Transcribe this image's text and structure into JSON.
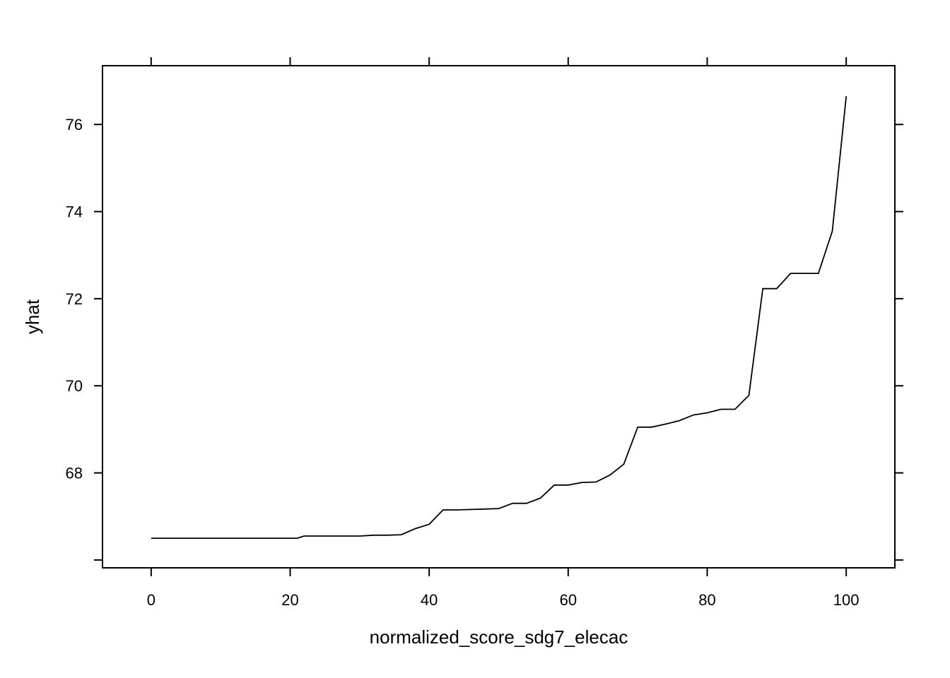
{
  "chart_data": {
    "type": "line",
    "title": "",
    "xlabel": "normalized_score_sdg7_elecac",
    "ylabel": "yhat",
    "xlim": [
      -7,
      107
    ],
    "ylim": [
      65.82,
      77.35
    ],
    "grid": false,
    "x_ticks": [
      0,
      20,
      40,
      60,
      80,
      100
    ],
    "x_tick_labels": [
      "0",
      "20",
      "40",
      "60",
      "80",
      "100"
    ],
    "y_ticks": [
      66,
      68,
      70,
      72,
      74,
      76
    ],
    "y_tick_labels": [
      "",
      "68",
      "70",
      "72",
      "74",
      "76"
    ],
    "series": [
      {
        "x": [
          0,
          2,
          4,
          6,
          8,
          10,
          12,
          14,
          16,
          18,
          20,
          21,
          22,
          24,
          26,
          28,
          30,
          32,
          34,
          36,
          38,
          40,
          42,
          44,
          46,
          48,
          50,
          52,
          54,
          56,
          58,
          60,
          62,
          64,
          66,
          68,
          70,
          72,
          74,
          76,
          78,
          80,
          82,
          84,
          86,
          88,
          90,
          92,
          94,
          96,
          98,
          100
        ],
        "y": [
          66.5,
          66.5,
          66.5,
          66.5,
          66.5,
          66.5,
          66.5,
          66.5,
          66.5,
          66.5,
          66.5,
          66.5,
          66.55,
          66.55,
          66.55,
          66.55,
          66.55,
          66.57,
          66.57,
          66.58,
          66.72,
          66.82,
          67.15,
          67.15,
          67.16,
          67.17,
          67.18,
          67.3,
          67.3,
          67.42,
          67.72,
          67.72,
          67.78,
          67.79,
          67.95,
          68.2,
          69.05,
          69.05,
          69.12,
          69.2,
          69.33,
          69.38,
          69.46,
          69.46,
          69.78,
          72.23,
          72.23,
          72.58,
          72.58,
          72.58,
          73.55,
          76.65
        ]
      }
    ]
  }
}
